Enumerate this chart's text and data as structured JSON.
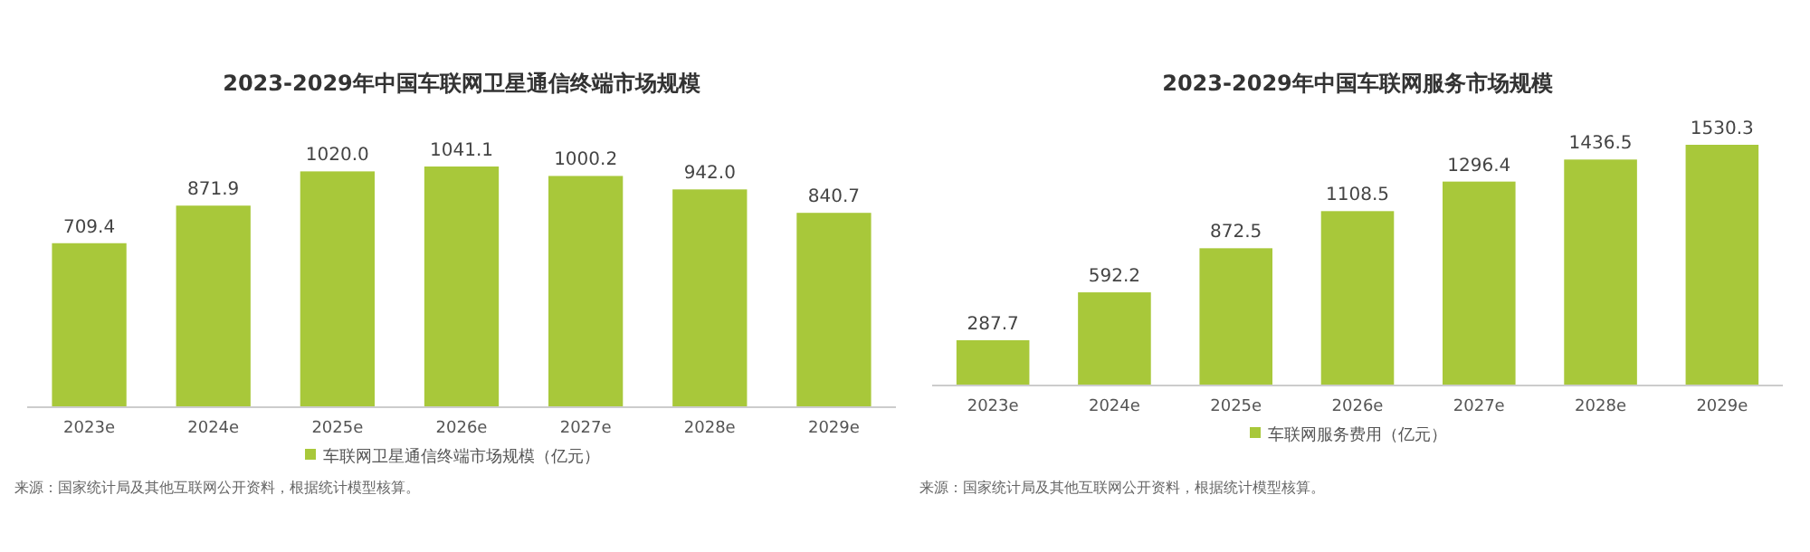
{
  "chart_data": [
    {
      "type": "bar",
      "title": "2023-2029年中国车联网卫星通信终端市场规模",
      "categories": [
        "2023e",
        "2024e",
        "2025e",
        "2026e",
        "2027e",
        "2028e",
        "2029e"
      ],
      "series": [
        {
          "name": "车联网卫星通信终端市场规模（亿元）",
          "color": "#a8c83a",
          "values": [
            709.4,
            871.9,
            1020.0,
            1041.1,
            1000.2,
            942.0,
            840.7
          ],
          "value_labels": [
            "709.4",
            "871.9",
            "1020.0",
            "1041.1",
            "1000.2",
            "942.0",
            "840.7"
          ]
        }
      ],
      "legend": "bottom",
      "tick_labels": "x",
      "annotations": [
        "来源：国家统计局及其他互联网公开资料，根据统计模型核算。"
      ]
    },
    {
      "type": "bar",
      "title": "2023-2029年中国车联网服务市场规模",
      "categories": [
        "2023e",
        "2024e",
        "2025e",
        "2026e",
        "2027e",
        "2028e",
        "2029e"
      ],
      "series": [
        {
          "name": "车联网服务费用（亿元）",
          "color": "#a8c83a",
          "values": [
            287.7,
            592.2,
            872.5,
            1108.5,
            1296.4,
            1436.5,
            1530.3
          ],
          "value_labels": [
            "287.7",
            "592.2",
            "872.5",
            "1108.5",
            "1296.4",
            "1436.5",
            "1530.3"
          ]
        }
      ],
      "legend": "bottom",
      "tick_labels": "x",
      "annotations": [
        "来源：国家统计局及其他互联网公开资料，根据统计模型核算。"
      ]
    }
  ]
}
